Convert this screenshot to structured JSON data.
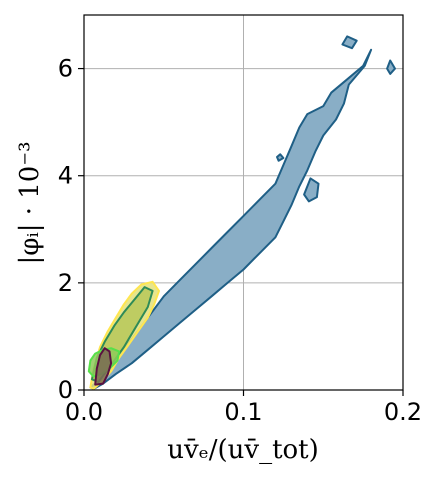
{
  "chart_data": {
    "type": "contour",
    "xlabel": "uv̄ₑ/(uv̄_tot)",
    "ylabel": "|φᵢ| · 10⁻³",
    "xlim": [
      0.0,
      0.2
    ],
    "ylim": [
      0,
      7
    ],
    "x_ticks": [
      0.0,
      0.1,
      0.2
    ],
    "x_tick_labels": [
      "0.0",
      "0.1",
      "0.2"
    ],
    "y_ticks": [
      0,
      2,
      4,
      6
    ],
    "y_tick_labels": [
      "0",
      "2",
      "4",
      "6"
    ],
    "grid": true,
    "series": [
      {
        "color": "#89aec6",
        "edge": "#1f5f86",
        "regions": [
          [
            [
              0.004,
              0.05
            ],
            [
              0.01,
              0.2
            ],
            [
              0.015,
              0.4
            ],
            [
              0.02,
              0.6
            ],
            [
              0.03,
              0.95
            ],
            [
              0.04,
              1.35
            ],
            [
              0.05,
              1.75
            ],
            [
              0.06,
              2.05
            ],
            [
              0.07,
              2.35
            ],
            [
              0.08,
              2.65
            ],
            [
              0.09,
              2.95
            ],
            [
              0.1,
              3.25
            ],
            [
              0.11,
              3.55
            ],
            [
              0.12,
              3.85
            ],
            [
              0.125,
              4.2
            ],
            [
              0.13,
              4.55
            ],
            [
              0.135,
              4.9
            ],
            [
              0.14,
              5.15
            ],
            [
              0.15,
              5.3
            ],
            [
              0.155,
              5.55
            ],
            [
              0.165,
              5.8
            ],
            [
              0.175,
              6.05
            ],
            [
              0.18,
              6.35
            ],
            [
              0.176,
              6.05
            ],
            [
              0.166,
              5.7
            ],
            [
              0.163,
              5.35
            ],
            [
              0.158,
              5.05
            ],
            [
              0.15,
              4.75
            ],
            [
              0.145,
              4.45
            ],
            [
              0.14,
              4.1
            ],
            [
              0.135,
              3.8
            ],
            [
              0.13,
              3.45
            ],
            [
              0.125,
              3.15
            ],
            [
              0.12,
              2.85
            ],
            [
              0.11,
              2.55
            ],
            [
              0.1,
              2.25
            ],
            [
              0.09,
              2.0
            ],
            [
              0.08,
              1.75
            ],
            [
              0.07,
              1.5
            ],
            [
              0.06,
              1.25
            ],
            [
              0.05,
              1.0
            ],
            [
              0.04,
              0.75
            ],
            [
              0.03,
              0.5
            ],
            [
              0.02,
              0.3
            ],
            [
              0.012,
              0.12
            ],
            [
              0.006,
              0.02
            ]
          ],
          [
            [
              0.138,
              3.65
            ],
            [
              0.142,
              3.95
            ],
            [
              0.147,
              3.85
            ],
            [
              0.146,
              3.6
            ],
            [
              0.141,
              3.52
            ]
          ],
          [
            [
              0.162,
              6.45
            ],
            [
              0.165,
              6.6
            ],
            [
              0.171,
              6.52
            ],
            [
              0.168,
              6.38
            ]
          ],
          [
            [
              0.19,
              6.0
            ],
            [
              0.192,
              6.15
            ],
            [
              0.195,
              6.0
            ],
            [
              0.192,
              5.9
            ]
          ],
          [
            [
              0.121,
              4.35
            ],
            [
              0.123,
              4.4
            ],
            [
              0.125,
              4.33
            ],
            [
              0.122,
              4.28
            ]
          ]
        ]
      },
      {
        "color": "#e3e07a",
        "edge": "#ffe650",
        "regions": [
          [
            [
              0.004,
              0.05
            ],
            [
              0.006,
              0.4
            ],
            [
              0.01,
              0.8
            ],
            [
              0.015,
              1.1
            ],
            [
              0.02,
              1.35
            ],
            [
              0.025,
              1.6
            ],
            [
              0.03,
              1.8
            ],
            [
              0.036,
              1.97
            ],
            [
              0.043,
              2.02
            ],
            [
              0.047,
              1.85
            ],
            [
              0.044,
              1.6
            ],
            [
              0.04,
              1.35
            ],
            [
              0.034,
              1.1
            ],
            [
              0.028,
              0.85
            ],
            [
              0.022,
              0.6
            ],
            [
              0.017,
              0.35
            ],
            [
              0.011,
              0.15
            ],
            [
              0.006,
              0.02
            ]
          ]
        ]
      },
      {
        "color": "#b6c85a",
        "edge": "#2e8b57",
        "regions": [
          [
            [
              0.005,
              0.2
            ],
            [
              0.008,
              0.6
            ],
            [
              0.013,
              0.9
            ],
            [
              0.019,
              1.2
            ],
            [
              0.025,
              1.45
            ],
            [
              0.032,
              1.7
            ],
            [
              0.038,
              1.92
            ],
            [
              0.043,
              1.85
            ],
            [
              0.04,
              1.55
            ],
            [
              0.035,
              1.3
            ],
            [
              0.03,
              1.05
            ],
            [
              0.025,
              0.8
            ],
            [
              0.019,
              0.55
            ],
            [
              0.014,
              0.35
            ],
            [
              0.009,
              0.15
            ]
          ]
        ]
      },
      {
        "color": "#8fc95c",
        "edge": "#57e04a",
        "regions": [
          [
            [
              0.003,
              0.35
            ],
            [
              0.004,
              0.55
            ],
            [
              0.007,
              0.68
            ],
            [
              0.012,
              0.75
            ],
            [
              0.017,
              0.78
            ],
            [
              0.022,
              0.72
            ],
            [
              0.021,
              0.55
            ],
            [
              0.016,
              0.4
            ],
            [
              0.011,
              0.3
            ],
            [
              0.006,
              0.25
            ]
          ]
        ]
      },
      {
        "color": "#7a6a52",
        "edge": "#5a1040",
        "regions": [
          [
            [
              0.007,
              0.1
            ],
            [
              0.008,
              0.4
            ],
            [
              0.01,
              0.65
            ],
            [
              0.013,
              0.78
            ],
            [
              0.016,
              0.72
            ],
            [
              0.017,
              0.5
            ],
            [
              0.015,
              0.3
            ],
            [
              0.012,
              0.12
            ]
          ]
        ]
      }
    ]
  }
}
